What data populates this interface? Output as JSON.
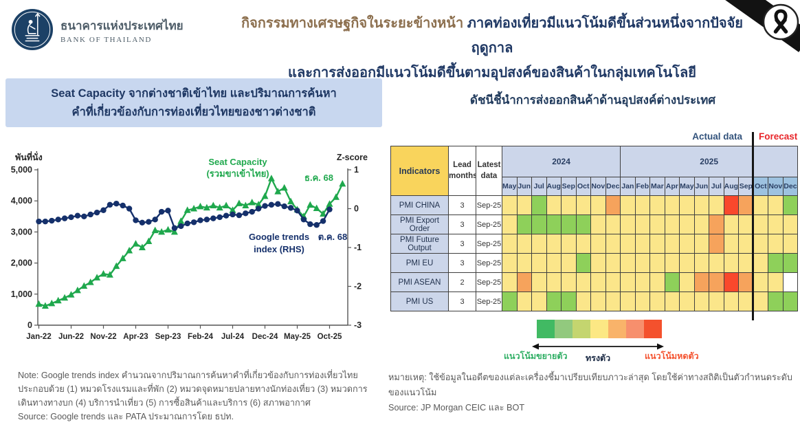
{
  "header": {
    "logo_thai": "ธนาคารแห่งประเทศไทย",
    "logo_eng": "BANK OF THAILAND",
    "title_lead": "กิจกรรมทางเศรษฐกิจในระยะข้างหน้า",
    "title_rest": " ภาคท่องเที่ยวมีแนวโน้มดีขึ้นส่วนหนึ่งจากปัจจัยฤดูกาล",
    "title_line2": "และการส่งออกมีแนวโน้มดีขึ้นตามอุปสงค์ของสินค้าในกลุ่มเทคโนโลยี"
  },
  "left_panel": {
    "title_line1": "Seat Capacity จากต่างชาติเข้าไทย และปริมาณการค้นหา",
    "title_line2": "คำที่เกี่ยวข้องกับการท่องเที่ยวไทยของชาวต่างชาติ",
    "note_lines": [
      "Note: Google trends index คำนวณจากปริมาณการค้นหาคำที่เกี่ยวข้องกับการท่องเที่ยวไทย",
      "ประกอบด้วย (1) หมวดโรงแรมและที่พัก (2) หมวดจุดหมายปลายทางนักท่องเที่ยว (3) หมวดการ",
      "เดินทางทางบก (4) บริการนำเที่ยว (5) การซื้อสินค้าและบริการ (6) สภาพอากาศ",
      "Source: Google trends และ PATA ประมาณการโดย ธปท."
    ]
  },
  "chart_data": {
    "type": "line",
    "title": "Seat Capacity จากต่างชาติเข้าไทย และปริมาณการค้นหาคำที่เกี่ยวข้องกับการท่องเที่ยวไทยของชาวต่างชาติ",
    "x_start": "Jan-22",
    "x_end": "Dec-25",
    "n_months": 48,
    "x_tick_labels": [
      "Jan-22",
      "Jun-22",
      "Nov-22",
      "Apr-23",
      "Sep-23",
      "Feb-24",
      "Jul-24",
      "Dec-24",
      "May-25",
      "Oct-25"
    ],
    "x_tick_month_index": [
      0,
      5,
      10,
      15,
      20,
      25,
      30,
      35,
      40,
      45
    ],
    "left_axis": {
      "label": "พันที่นั่ง",
      "tick_labels": [
        "5,000",
        "4,000",
        "3,000",
        "2,000",
        "1,000",
        "0"
      ],
      "tick_values": [
        5000,
        4000,
        3000,
        2000,
        1000,
        0
      ],
      "range": [
        0,
        5000
      ]
    },
    "right_axis": {
      "label": "Z-score",
      "tick_labels": [
        "1",
        "0",
        "-1",
        "-2",
        "-3"
      ],
      "tick_values": [
        1,
        0,
        -1,
        -2,
        -3
      ],
      "range": [
        -3,
        1
      ]
    },
    "grid": false,
    "series": [
      {
        "name": "Seat Capacity (รวมขาเข้าไทย)",
        "label_lines": [
          "Seat Capacity",
          "(รวมขาเข้าไทย)"
        ],
        "end_label": "ธ.ค. 68",
        "axis": "left",
        "color": "#1fa84d",
        "marker": "triangle",
        "values": [
          680,
          620,
          700,
          790,
          880,
          980,
          1120,
          1260,
          1380,
          1530,
          1650,
          1620,
          1900,
          2150,
          2400,
          2620,
          2500,
          2700,
          3050,
          3000,
          3070,
          3000,
          3350,
          3700,
          3750,
          3820,
          3780,
          3850,
          3780,
          3850,
          3700,
          3920,
          3850,
          3950,
          3880,
          4150,
          4720,
          4300,
          4420,
          3980,
          3720,
          3500,
          3870,
          3760,
          3580,
          3900,
          4120,
          4550
        ]
      },
      {
        "name": "Google trends index (RHS)",
        "label_lines": [
          "Google trends",
          "index (RHS)"
        ],
        "end_label": "ต.ค. 68",
        "axis": "right",
        "color": "#15306b",
        "marker": "circle",
        "values": [
          -0.33,
          -0.33,
          -0.31,
          -0.28,
          -0.25,
          -0.22,
          -0.18,
          -0.2,
          -0.15,
          -0.1,
          -0.04,
          0.1,
          0.13,
          0.08,
          0.0,
          -0.3,
          -0.36,
          -0.34,
          -0.28,
          -0.08,
          -0.05,
          -0.5,
          -0.45,
          -0.38,
          -0.35,
          -0.3,
          -0.28,
          -0.25,
          -0.22,
          -0.18,
          -0.15,
          -0.17,
          -0.12,
          -0.08,
          0.0,
          0.07,
          0.1,
          0.12,
          0.06,
          0.02,
          -0.05,
          -0.28,
          -0.4,
          -0.42,
          -0.32,
          -0.02
        ]
      }
    ]
  },
  "right_panel": {
    "title": "ดัชนีชี้นำการส่งออกสินค้าด้านอุปสงค์ต่างประเทศ",
    "actual_label": "Actual data",
    "forecast_label": "Forecast",
    "table": {
      "col_headers": {
        "indicators": "Indicators",
        "lead": "Lead months",
        "latest": "Latest data"
      },
      "year_groups": [
        {
          "label": "2024",
          "months": [
            "May",
            "Jun",
            "Jul",
            "Aug",
            "Sep",
            "Oct",
            "Nov",
            "Dec"
          ]
        },
        {
          "label": "2025",
          "months": [
            "Jan",
            "Feb",
            "Mar",
            "Apr",
            "May",
            "Jun",
            "Jul",
            "Aug",
            "Sep",
            "Oct",
            "Nov",
            "Dec"
          ]
        }
      ],
      "forecast_count": 3,
      "cell_colors": {
        "G": "#8ed05a",
        "Y": "#fbe68a",
        "O": "#f6a35c",
        "R": "#f9482c",
        "W": "#ffffff"
      },
      "rows": [
        {
          "indicator": "PMI CHINA",
          "lead": "3",
          "latest": "Sep-25",
          "cells": [
            "Y",
            "Y",
            "G",
            "Y",
            "Y",
            "Y",
            "Y",
            "O",
            "Y",
            "Y",
            "Y",
            "Y",
            "Y",
            "Y",
            "Y",
            "R",
            "O",
            "Y",
            "Y",
            "G"
          ]
        },
        {
          "indicator": "PMI Export Order",
          "lead": "3",
          "latest": "Sep-25",
          "cells": [
            "Y",
            "G",
            "G",
            "G",
            "G",
            "G",
            "Y",
            "Y",
            "Y",
            "Y",
            "Y",
            "Y",
            "Y",
            "Y",
            "O",
            "Y",
            "Y",
            "Y",
            "Y",
            "Y"
          ]
        },
        {
          "indicator": "PMI Future Output",
          "lead": "3",
          "latest": "Sep-25",
          "cells": [
            "Y",
            "Y",
            "Y",
            "Y",
            "Y",
            "Y",
            "Y",
            "Y",
            "Y",
            "Y",
            "Y",
            "Y",
            "Y",
            "Y",
            "O",
            "Y",
            "Y",
            "Y",
            "Y",
            "Y"
          ]
        },
        {
          "indicator": "PMI EU",
          "lead": "3",
          "latest": "Sep-25",
          "cells": [
            "Y",
            "Y",
            "Y",
            "Y",
            "Y",
            "G",
            "Y",
            "Y",
            "Y",
            "Y",
            "Y",
            "Y",
            "Y",
            "Y",
            "Y",
            "Y",
            "Y",
            "Y",
            "G",
            "G"
          ]
        },
        {
          "indicator": "PMI ASEAN",
          "lead": "2",
          "latest": "Sep-25",
          "cells": [
            "Y",
            "O",
            "Y",
            "Y",
            "Y",
            "Y",
            "Y",
            "Y",
            "Y",
            "Y",
            "Y",
            "G",
            "Y",
            "O",
            "O",
            "R",
            "O",
            "Y",
            "Y",
            "W"
          ]
        },
        {
          "indicator": "PMI US",
          "lead": "3",
          "latest": "Sep-25",
          "cells": [
            "G",
            "Y",
            "Y",
            "G",
            "G",
            "Y",
            "Y",
            "Y",
            "Y",
            "Y",
            "Y",
            "Y",
            "Y",
            "Y",
            "Y",
            "Y",
            "Y",
            "Y",
            "G",
            "G"
          ]
        }
      ]
    },
    "legend": {
      "colors": [
        "#41ba63",
        "#92c97e",
        "#c4d56f",
        "#fce884",
        "#f9b36a",
        "#f78f6d",
        "#f4512d"
      ],
      "label_left": "แนวโน้มขยายตัว",
      "label_center": "ทรงตัว",
      "label_right": "แนวโน้มหดตัว"
    },
    "note_lines": [
      "หมายเหตุ: ใช้ข้อมูลในอดีตของแต่ละเครื่องชี้มาเปรียบเทียบภาวะล่าสุด โดยใช้ค่าทางสถิติเป็นตัวกำหนดระดับของแนวโน้ม",
      "Source: JP Morgan CEIC และ BOT"
    ]
  }
}
